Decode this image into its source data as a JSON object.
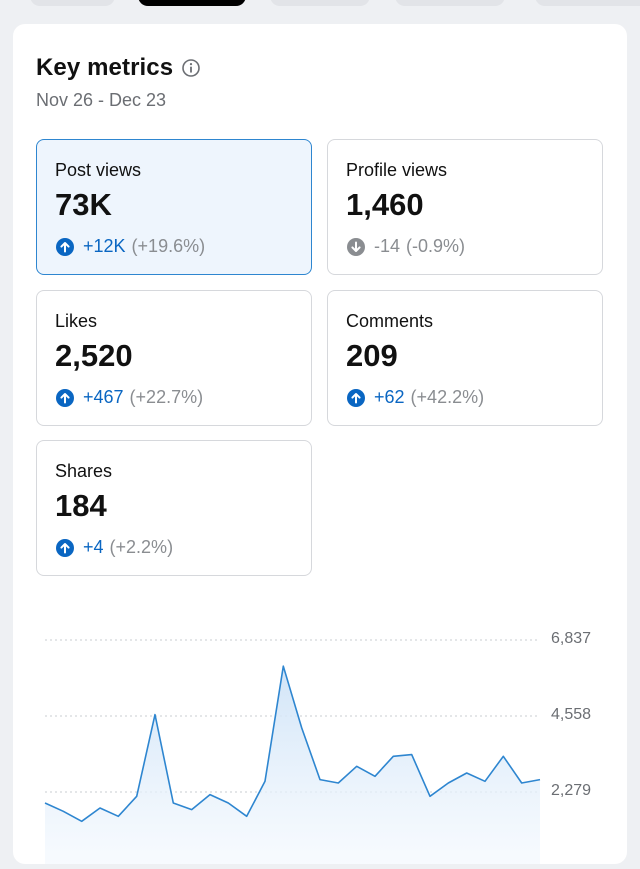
{
  "header": {
    "title": "Key metrics",
    "date_range": "Nov 26 - Dec 23"
  },
  "metrics": [
    {
      "label": "Post views",
      "value": "73K",
      "delta": "+12K",
      "pct": "(+19.6%)",
      "direction": "up",
      "selected": true
    },
    {
      "label": "Profile views",
      "value": "1,460",
      "delta": "-14",
      "pct": "(-0.9%)",
      "direction": "down",
      "selected": false
    },
    {
      "label": "Likes",
      "value": "2,520",
      "delta": "+467",
      "pct": "(+22.7%)",
      "direction": "up",
      "selected": false
    },
    {
      "label": "Comments",
      "value": "209",
      "delta": "+62",
      "pct": "(+42.2%)",
      "direction": "up",
      "selected": false
    },
    {
      "label": "Shares",
      "value": "184",
      "delta": "+4",
      "pct": "(+2.2%)",
      "direction": "up",
      "selected": false
    }
  ],
  "colors": {
    "accent": "#0a66c2",
    "muted": "#8a8d91",
    "line": "#2e86d0",
    "fill": "#dbeaf8"
  },
  "chart_data": {
    "type": "area",
    "yticks": [
      {
        "value": 6837,
        "label": "6,837"
      },
      {
        "value": 4558,
        "label": "4,558"
      },
      {
        "value": 2279,
        "label": "2,279"
      }
    ],
    "ylim": [
      0,
      6837
    ],
    "values": [
      1950,
      1700,
      1400,
      1800,
      1550,
      2150,
      4600,
      1950,
      1750,
      2200,
      1950,
      1550,
      2600,
      6050,
      4200,
      2650,
      2550,
      3050,
      2750,
      3350,
      3400,
      2150,
      2550,
      2850,
      2600,
      3350,
      2550,
      2650
    ]
  }
}
